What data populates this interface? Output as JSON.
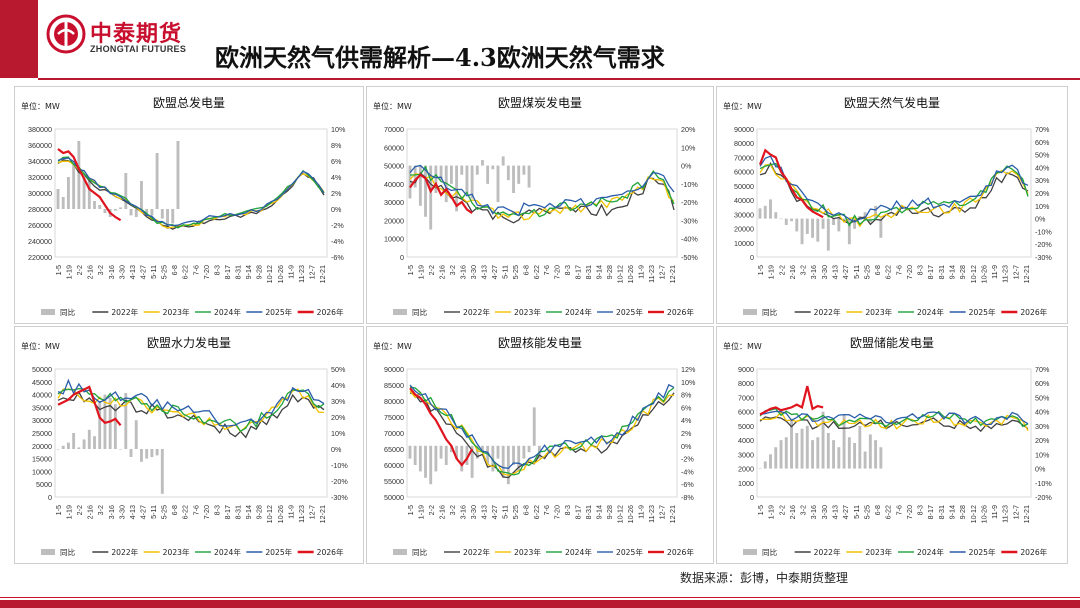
{
  "header": {
    "brand_cn": "中泰期货",
    "brand_en": "ZHONGTAI FUTURES",
    "title": "欧洲天然气供需解析—4.3欧洲天然气需求",
    "accent": "#b8192e"
  },
  "source": "数据来源：彭博，中泰期货整理",
  "legend_labels": [
    "同比",
    "2022年",
    "2023年",
    "2024年",
    "2025年",
    "2026年"
  ],
  "series_colors": {
    "同比": "#bdbdbd",
    "2022年": "#404040",
    "2023年": "#f2c200",
    "2024年": "#1fa33a",
    "2025年": "#2a5caa",
    "2026年": "#e0141e"
  },
  "x_ticks": [
    "1-5",
    "1-19",
    "2-2",
    "2-16",
    "3-2",
    "3-16",
    "3-30",
    "4-13",
    "4-27",
    "5-11",
    "5-25",
    "6-8",
    "6-22",
    "7-6",
    "7-20",
    "8-3",
    "8-17",
    "8-31",
    "9-14",
    "9-28",
    "10-12",
    "10-26",
    "11-9",
    "11-23",
    "12-7",
    "12-21"
  ],
  "chart_data": [
    {
      "id": "total",
      "type": "line",
      "title": "欧盟总发电量",
      "unit": "单位：MW",
      "left_ticks": [
        "220000",
        "240000",
        "260000",
        "280000",
        "300000",
        "320000",
        "340000",
        "360000",
        "380000"
      ],
      "right_ticks": [
        "-6%",
        "-4%",
        "-2%",
        "0%",
        "2%",
        "4%",
        "6%",
        "8%",
        "10%"
      ],
      "ylim": [
        220000,
        380000
      ],
      "y2lim": [
        -6,
        10
      ],
      "shape": [
        340000,
        342000,
        330000,
        318000,
        308000,
        300000,
        295000,
        285000,
        275000,
        266000,
        260000,
        257000,
        258000,
        262000,
        266000,
        270000,
        272000,
        274000,
        276000,
        280000,
        287000,
        298000,
        312000,
        326000,
        318000,
        300000
      ],
      "spread": 4000,
      "ytd_2026": [
        355000,
        350000,
        352000,
        345000,
        330000,
        318000,
        305000,
        300000,
        295000,
        285000,
        275000,
        270000,
        266000
      ],
      "yoy": [
        2.5,
        1.5,
        4.0,
        5.5,
        8.5,
        4.2,
        3.5,
        1.0,
        0.5,
        -0.5,
        -1.0,
        -0.2,
        0.2,
        4.5,
        -0.8,
        -1.0,
        3.5,
        -0.5,
        -0.8,
        7.0,
        -1.2,
        -2.5,
        -1.8,
        8.5
      ]
    },
    {
      "id": "coal",
      "type": "line",
      "title": "欧盟煤炭发电量",
      "unit": "单位：MW",
      "left_ticks": [
        "0",
        "10000",
        "20000",
        "30000",
        "40000",
        "50000",
        "60000",
        "70000"
      ],
      "right_ticks": [
        "-50%",
        "-40%",
        "-30%",
        "-20%",
        "-10%",
        "0%",
        "10%",
        "20%"
      ],
      "ylim": [
        0,
        70000
      ],
      "y2lim": [
        -50,
        20
      ],
      "shape": [
        45000,
        47000,
        44000,
        40000,
        36000,
        33000,
        30000,
        27000,
        24000,
        22000,
        22000,
        23000,
        24000,
        25000,
        26000,
        27000,
        28000,
        28000,
        29000,
        30000,
        33000,
        36000,
        40000,
        45000,
        40000,
        30000
      ],
      "spread": 5000,
      "ytd_2026": [
        38000,
        42000,
        45000,
        43000,
        36000,
        40000,
        34000,
        37000,
        33000,
        28000,
        30000,
        26000,
        24000
      ],
      "yoy": [
        -18,
        -12,
        -22,
        -28,
        -35,
        -15,
        -8,
        -20,
        -10,
        -25,
        -5,
        -15,
        -18,
        -5,
        3,
        -10,
        -2,
        -20,
        5,
        -8,
        -15,
        -10,
        -5,
        -12
      ]
    },
    {
      "id": "gas",
      "type": "line",
      "title": "欧盟天然气发电量",
      "unit": "单位：MW",
      "left_ticks": [
        "0",
        "10000",
        "20000",
        "30000",
        "40000",
        "50000",
        "60000",
        "70000",
        "80000",
        "90000"
      ],
      "right_ticks": [
        "-30%",
        "-20%",
        "-10%",
        "0%",
        "10%",
        "20%",
        "30%",
        "40%",
        "50%",
        "60%",
        "70%"
      ],
      "ylim": [
        0,
        90000
      ],
      "y2lim": [
        -30,
        70
      ],
      "shape": [
        62000,
        66000,
        60000,
        50000,
        42000,
        36000,
        32000,
        28000,
        26000,
        25000,
        26000,
        28000,
        31000,
        33000,
        35000,
        36000,
        36000,
        35000,
        35000,
        38000,
        42000,
        48000,
        55000,
        62000,
        58000,
        45000
      ],
      "spread": 6000,
      "ytd_2026": [
        65000,
        75000,
        72000,
        70000,
        60000,
        55000,
        48000,
        42000,
        40000,
        35000,
        32000,
        30000,
        28000
      ],
      "yoy": [
        8,
        10,
        15,
        5,
        0,
        -5,
        -2,
        -10,
        -20,
        -12,
        -15,
        -18,
        -8,
        -25,
        -5,
        -10,
        -2,
        -20,
        -8,
        2,
        5,
        -3,
        10,
        -15
      ]
    },
    {
      "id": "hydro",
      "type": "line",
      "title": "欧盟水力发电量",
      "unit": "单位：MW",
      "left_ticks": [
        "0",
        "5000",
        "10000",
        "15000",
        "20000",
        "25000",
        "30000",
        "35000",
        "40000",
        "45000",
        "50000"
      ],
      "right_ticks": [
        "-30%",
        "-20%",
        "-10%",
        "0%",
        "10%",
        "20%",
        "30%",
        "40%",
        "50%"
      ],
      "ylim": [
        0,
        50000
      ],
      "y2lim": [
        -30,
        50
      ],
      "shape": [
        40000,
        42000,
        41000,
        39000,
        38000,
        38500,
        38000,
        37500,
        36500,
        35000,
        34000,
        33000,
        32000,
        31000,
        29500,
        28500,
        27500,
        27000,
        27500,
        30000,
        33000,
        37000,
        40000,
        41000,
        37000,
        34000
      ],
      "spread": 3500,
      "ytd_2026": [
        36000,
        37000,
        38000,
        40000,
        41000,
        42000,
        43000,
        37000,
        31000,
        29000,
        29500,
        30500,
        28000
      ],
      "yoy": [
        0,
        2,
        4,
        10,
        1,
        6,
        12,
        8,
        30,
        34,
        32,
        28,
        0,
        35,
        -5,
        18,
        -8,
        -6,
        -5,
        -4,
        -28
      ]
    },
    {
      "id": "nuclear",
      "type": "line",
      "title": "欧盟核能发电量",
      "unit": "单位：MW",
      "left_ticks": [
        "50000",
        "55000",
        "60000",
        "65000",
        "70000",
        "75000",
        "80000",
        "85000",
        "90000"
      ],
      "right_ticks": [
        "-8%",
        "-6%",
        "-4%",
        "-2%",
        "0%",
        "2%",
        "4%",
        "6%",
        "8%",
        "10%",
        "12%"
      ],
      "ylim": [
        50000,
        90000
      ],
      "y2lim": [
        -8,
        12
      ],
      "shape": [
        84000,
        82000,
        79000,
        77000,
        74000,
        71000,
        67000,
        63000,
        60000,
        58000,
        58000,
        60000,
        62000,
        63500,
        64500,
        65500,
        66000,
        66500,
        67000,
        68000,
        70000,
        73000,
        76000,
        79000,
        81000,
        83000
      ],
      "spread": 2500,
      "ytd_2026": [
        84000,
        82000,
        81000,
        79000,
        76000,
        74000,
        71000,
        68000,
        66000,
        62000,
        60000,
        62000,
        65000
      ],
      "yoy": [
        -2,
        -3,
        -4,
        -5,
        -6,
        -4,
        -2,
        -3,
        -1,
        -2,
        -4,
        -3,
        -5,
        -2,
        -1,
        -3,
        -4,
        -2,
        -5,
        -6,
        -3,
        -4,
        -2,
        -1,
        6,
        -2
      ]
    },
    {
      "id": "storage",
      "type": "line",
      "title": "欧盟储能发电量",
      "unit": "单位：MW",
      "left_ticks": [
        "0",
        "1000",
        "2000",
        "3000",
        "4000",
        "5000",
        "6000",
        "7000",
        "8000",
        "9000"
      ],
      "right_ticks": [
        "-20%",
        "-10%",
        "0%",
        "10%",
        "20%",
        "30%",
        "40%",
        "50%",
        "60%",
        "70%"
      ],
      "ylim": [
        0,
        9000
      ],
      "y2lim": [
        -20,
        70
      ],
      "shape": [
        5600,
        5900,
        5800,
        5600,
        5500,
        5400,
        5400,
        5300,
        5300,
        5300,
        5200,
        5200,
        5100,
        5200,
        5400,
        5500,
        5600,
        5600,
        5500,
        5400,
        5300,
        5200,
        5300,
        5500,
        5300,
        5000
      ],
      "spread": 500,
      "ytd_2026": [
        5800,
        6000,
        6200,
        6300,
        6100,
        6200,
        6300,
        6500,
        6300,
        7800,
        6200,
        6400,
        6300
      ],
      "yoy": [
        0,
        5,
        10,
        15,
        20,
        22,
        35,
        25,
        28,
        30,
        20,
        22,
        40,
        25,
        20,
        15,
        38,
        22,
        18,
        30,
        12,
        24,
        20,
        15
      ]
    }
  ]
}
